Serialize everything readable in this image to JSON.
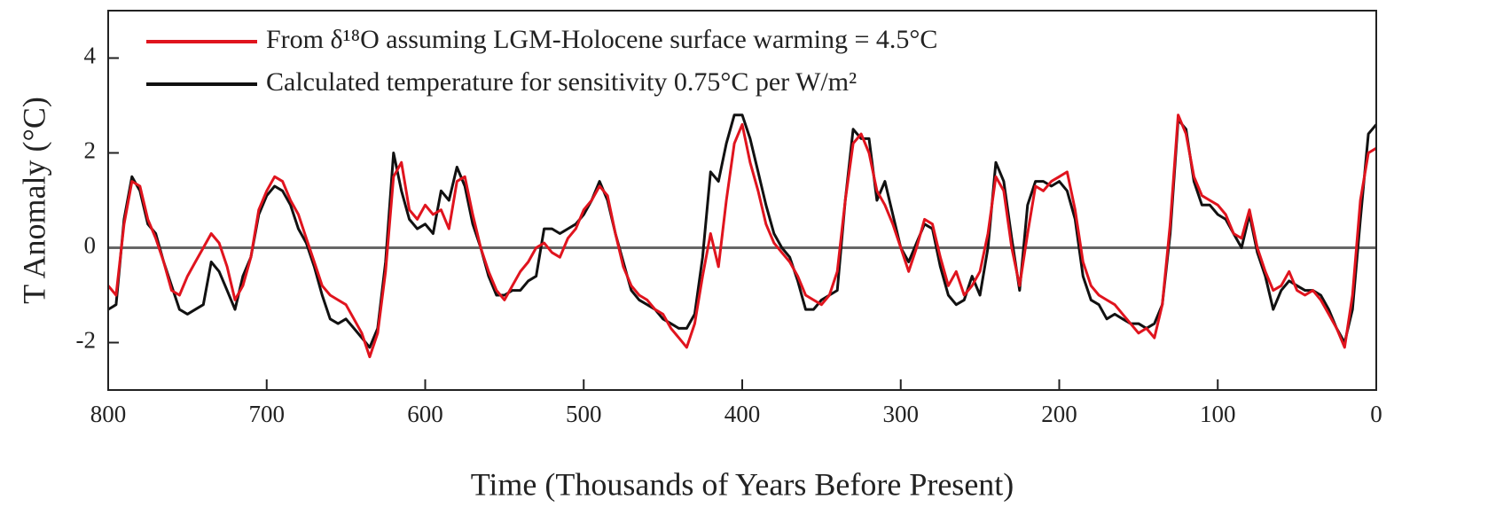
{
  "chart_data": {
    "type": "line",
    "xlabel": "Time (Thousands of Years Before Present)",
    "ylabel": "T Anomaly (°C)",
    "x": [
      800,
      795,
      790,
      785,
      780,
      775,
      770,
      765,
      760,
      755,
      750,
      745,
      740,
      735,
      730,
      725,
      720,
      715,
      710,
      705,
      700,
      695,
      690,
      685,
      680,
      675,
      670,
      665,
      660,
      655,
      650,
      645,
      640,
      635,
      630,
      625,
      620,
      615,
      610,
      605,
      600,
      595,
      590,
      585,
      580,
      575,
      570,
      565,
      560,
      555,
      550,
      545,
      540,
      535,
      530,
      525,
      520,
      515,
      510,
      505,
      500,
      495,
      490,
      485,
      480,
      475,
      470,
      465,
      460,
      455,
      450,
      445,
      440,
      435,
      430,
      425,
      420,
      415,
      410,
      405,
      400,
      395,
      390,
      385,
      380,
      375,
      370,
      365,
      360,
      355,
      350,
      345,
      340,
      335,
      330,
      325,
      320,
      315,
      310,
      305,
      300,
      295,
      290,
      285,
      280,
      275,
      270,
      265,
      260,
      255,
      250,
      245,
      240,
      235,
      230,
      225,
      220,
      215,
      210,
      205,
      200,
      195,
      190,
      185,
      180,
      175,
      170,
      165,
      160,
      155,
      150,
      145,
      140,
      135,
      130,
      125,
      120,
      115,
      110,
      105,
      100,
      95,
      90,
      85,
      80,
      75,
      70,
      65,
      60,
      55,
      50,
      45,
      40,
      35,
      30,
      25,
      20,
      15,
      10,
      5,
      0
    ],
    "series": [
      {
        "name": "From δ¹⁸O assuming LGM-Holocene surface warming = 4.5°C",
        "color": "#e0141e",
        "values": [
          -0.8,
          -1.0,
          0.5,
          1.4,
          1.3,
          0.6,
          0.2,
          -0.3,
          -0.9,
          -1.0,
          -0.6,
          -0.3,
          0.0,
          0.3,
          0.1,
          -0.4,
          -1.1,
          -0.8,
          -0.2,
          0.8,
          1.2,
          1.5,
          1.4,
          1.0,
          0.7,
          0.2,
          -0.3,
          -0.8,
          -1.0,
          -1.1,
          -1.2,
          -1.5,
          -1.8,
          -2.3,
          -1.8,
          -0.5,
          1.5,
          1.8,
          0.8,
          0.6,
          0.9,
          0.7,
          0.8,
          0.4,
          1.4,
          1.5,
          0.7,
          0.0,
          -0.5,
          -0.9,
          -1.1,
          -0.8,
          -0.5,
          -0.3,
          0.0,
          0.1,
          -0.1,
          -0.2,
          0.2,
          0.4,
          0.8,
          1.0,
          1.3,
          1.1,
          0.3,
          -0.4,
          -0.8,
          -1.0,
          -1.1,
          -1.3,
          -1.4,
          -1.7,
          -1.9,
          -2.1,
          -1.6,
          -0.6,
          0.3,
          -0.4,
          1.0,
          2.2,
          2.6,
          1.8,
          1.2,
          0.5,
          0.1,
          -0.1,
          -0.3,
          -0.6,
          -1.0,
          -1.1,
          -1.2,
          -1.0,
          -0.5,
          1.0,
          2.2,
          2.4,
          2.0,
          1.2,
          0.9,
          0.5,
          0.0,
          -0.5,
          0.0,
          0.6,
          0.5,
          -0.2,
          -0.8,
          -0.5,
          -1.0,
          -0.8,
          -0.5,
          0.3,
          1.5,
          1.2,
          0.0,
          -0.8,
          0.3,
          1.3,
          1.2,
          1.4,
          1.5,
          1.6,
          0.8,
          -0.3,
          -0.8,
          -1.0,
          -1.1,
          -1.2,
          -1.4,
          -1.6,
          -1.8,
          -1.7,
          -1.9,
          -1.2,
          0.5,
          2.8,
          2.4,
          1.5,
          1.1,
          1.0,
          0.9,
          0.7,
          0.3,
          0.2,
          0.8,
          0.0,
          -0.5,
          -0.9,
          -0.8,
          -0.5,
          -0.9,
          -1.0,
          -0.9,
          -1.1,
          -1.4,
          -1.7,
          -2.1,
          -1.0,
          1.0,
          2.0,
          2.1
        ]
      },
      {
        "name": "Calculated temperature for sensitivity 0.75°C per W/m²",
        "color": "#111111",
        "values": [
          -1.3,
          -1.2,
          0.6,
          1.5,
          1.2,
          0.5,
          0.3,
          -0.3,
          -0.8,
          -1.3,
          -1.4,
          -1.3,
          -1.2,
          -0.3,
          -0.5,
          -0.9,
          -1.3,
          -0.6,
          -0.2,
          0.7,
          1.1,
          1.3,
          1.2,
          0.9,
          0.4,
          0.1,
          -0.4,
          -1.0,
          -1.5,
          -1.6,
          -1.5,
          -1.7,
          -1.9,
          -2.1,
          -1.7,
          -0.3,
          2.0,
          1.2,
          0.6,
          0.4,
          0.5,
          0.3,
          1.2,
          1.0,
          1.7,
          1.3,
          0.5,
          0.0,
          -0.6,
          -1.0,
          -1.0,
          -0.9,
          -0.9,
          -0.7,
          -0.6,
          0.4,
          0.4,
          0.3,
          0.4,
          0.5,
          0.7,
          1.0,
          1.4,
          1.0,
          0.3,
          -0.3,
          -0.9,
          -1.1,
          -1.2,
          -1.3,
          -1.5,
          -1.6,
          -1.7,
          -1.7,
          -1.4,
          -0.2,
          1.6,
          1.4,
          2.2,
          2.8,
          2.8,
          2.3,
          1.6,
          0.9,
          0.3,
          0.0,
          -0.2,
          -0.7,
          -1.3,
          -1.3,
          -1.1,
          -1.0,
          -0.9,
          1.0,
          2.5,
          2.3,
          2.3,
          1.0,
          1.4,
          0.7,
          0.0,
          -0.3,
          0.1,
          0.5,
          0.4,
          -0.4,
          -1.0,
          -1.2,
          -1.1,
          -0.6,
          -1.0,
          0.0,
          1.8,
          1.4,
          0.2,
          -0.9,
          0.9,
          1.4,
          1.4,
          1.3,
          1.4,
          1.2,
          0.6,
          -0.6,
          -1.1,
          -1.2,
          -1.5,
          -1.4,
          -1.5,
          -1.6,
          -1.6,
          -1.7,
          -1.6,
          -1.2,
          0.3,
          2.7,
          2.5,
          1.4,
          0.9,
          0.9,
          0.7,
          0.6,
          0.3,
          0.0,
          0.7,
          -0.1,
          -0.6,
          -1.3,
          -0.9,
          -0.7,
          -0.8,
          -0.9,
          -0.9,
          -1.0,
          -1.3,
          -1.7,
          -2.0,
          -1.3,
          0.6,
          2.4,
          2.6
        ]
      }
    ],
    "xlim": [
      800,
      0
    ],
    "xticks": [
      800,
      700,
      600,
      500,
      400,
      300,
      200,
      100,
      0
    ],
    "ylim": [
      -3,
      5
    ],
    "yticks": [
      -2,
      0,
      2,
      4
    ],
    "zero_line": true,
    "legend": "upper left"
  }
}
